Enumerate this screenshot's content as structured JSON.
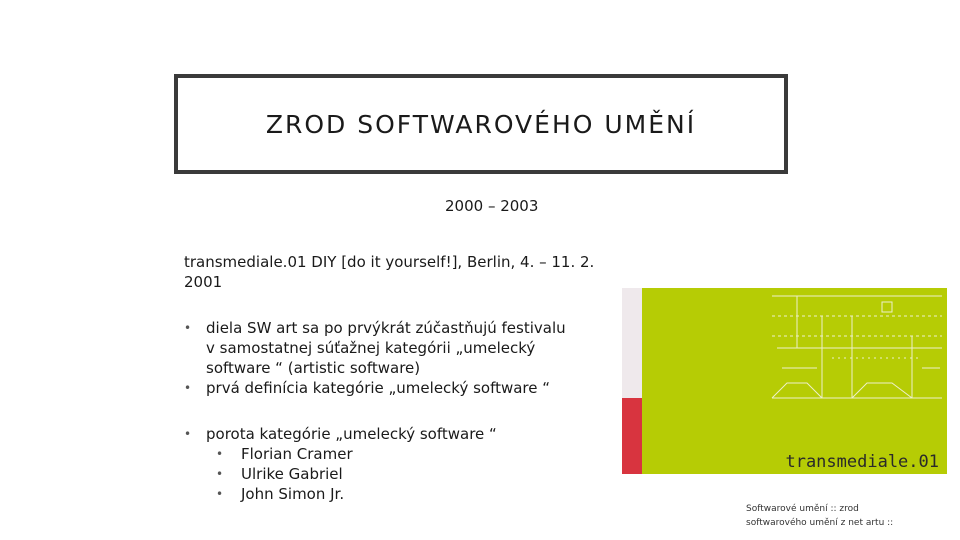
{
  "title": "ZROD SOFTWAROVÉHO UMĚNÍ",
  "years": "2000 – 2003",
  "event_line1": "transmediale.01 DIY [do it yourself!], Berlin, 4. – 11. 2.",
  "event_line2": "2001",
  "bullets": [
    "diela SW art sa po prvýkrát zúčastňujú festivalu",
    "v samostatnej súťažnej kategórii „umelecký",
    "software  “ (artistic software)",
    "prvá definícia kategórie „umelecký software  “"
  ],
  "jury": {
    "label": "porota kategórie „umelecký software  “",
    "members": [
      "Florian Cramer",
      "Ulrike Gabriel",
      "John Simon Jr."
    ]
  },
  "poster": {
    "logo": "transmediale.01",
    "colors": {
      "background": "#b6cc05",
      "strip_red": "#d8343f",
      "strip_light": "#efe9ec"
    }
  },
  "footer": {
    "line1": "Softwarové umění  :: zrod",
    "line2": "softwarového umění z net artu ::"
  },
  "bullet_glyph": "•"
}
